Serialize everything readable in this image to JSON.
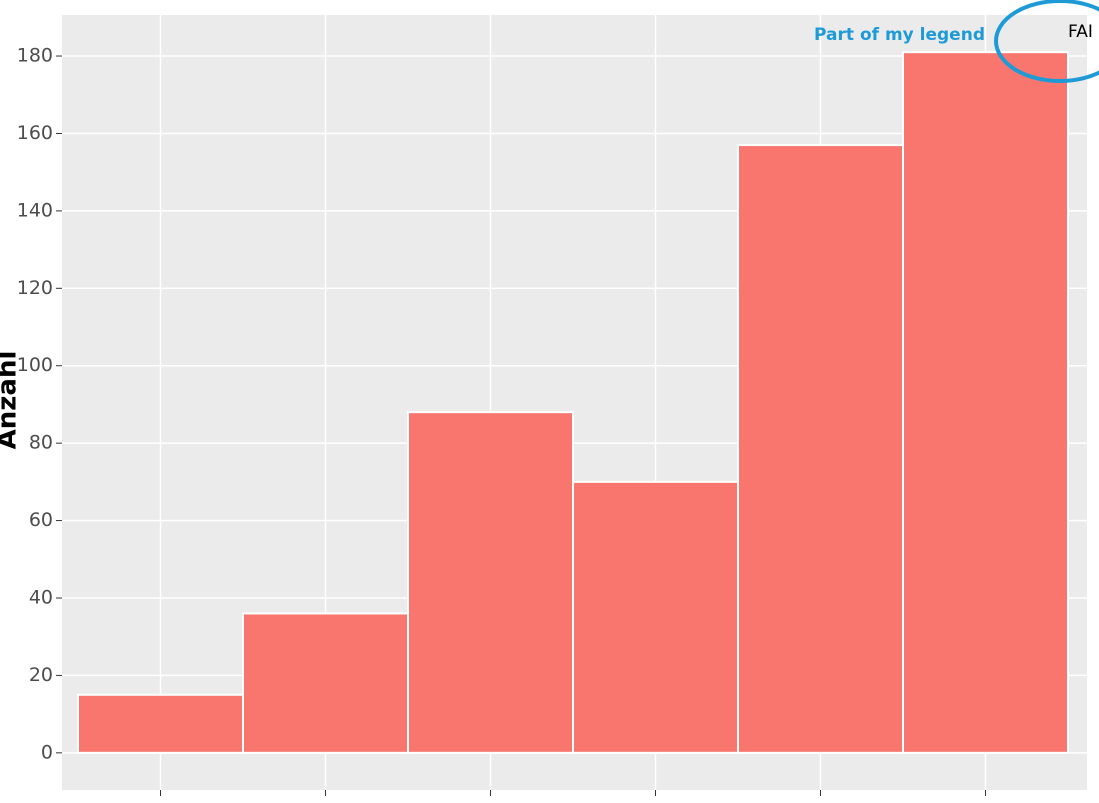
{
  "chart_data": {
    "type": "bar",
    "y_label": "Anzahl",
    "annotation": "Part of my legend",
    "categories": [
      null,
      null,
      null,
      null,
      null,
      null
    ],
    "series": [
      {
        "name": "FAI",
        "color": "#f8766d",
        "values": [
          15,
          36,
          88,
          70,
          157,
          181
        ]
      }
    ],
    "ylim": [
      -9.6,
      190.6
    ],
    "yticks": [
      0,
      20,
      40,
      60,
      80,
      100,
      120,
      140,
      160,
      180
    ],
    "grid": true
  }
}
